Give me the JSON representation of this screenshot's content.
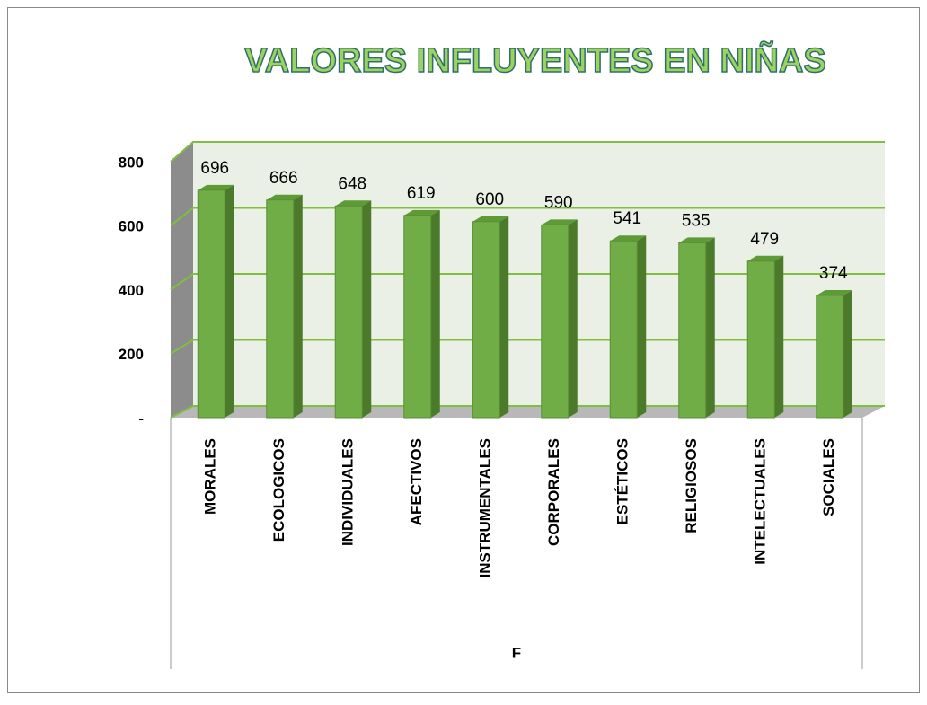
{
  "chart_data": {
    "type": "bar3d",
    "title": "VALORES INFLUYENTES EN NIÑAS",
    "categories": [
      "MORALES",
      "ECOLOGICOS",
      "INDIVIDUALES",
      "AFECTIVOS",
      "INSTRUMENTALES",
      "CORPORALES",
      "ESTÉTICOS",
      "RELIGIOSOS",
      "INTELECTUALES",
      "SOCIALES"
    ],
    "values": [
      696,
      666,
      648,
      619,
      600,
      590,
      541,
      535,
      479,
      374
    ],
    "color": "#70ad47",
    "xlabel": "F",
    "ylim": [
      0,
      800
    ],
    "yticks": [
      {
        "value": 0,
        "label": "-"
      },
      200,
      400,
      600,
      800
    ],
    "grid": true
  }
}
